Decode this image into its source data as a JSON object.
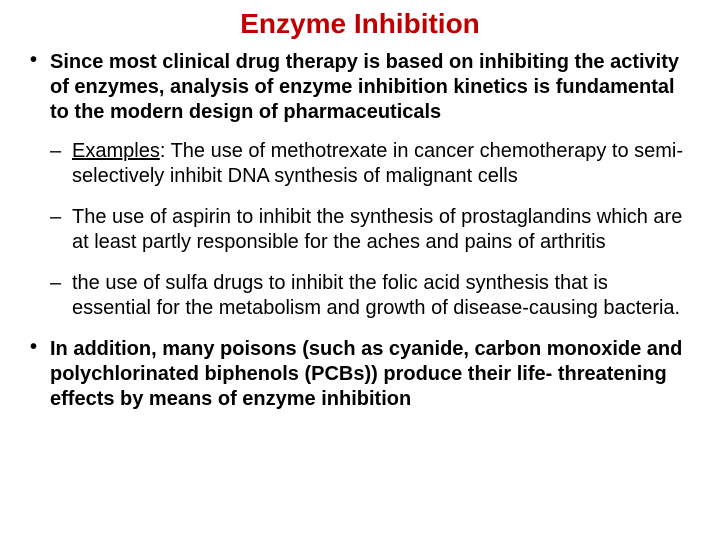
{
  "title": {
    "text": "Enzyme Inhibition",
    "color": "#c00000",
    "fontsize": 28
  },
  "body": {
    "color": "#000000",
    "fontsize": 20,
    "bullets": [
      {
        "text": "Since most clinical drug therapy is based on inhibiting the activity of enzymes, analysis of enzyme inhibition kinetics is fundamental to the modern design of pharmaceuticals",
        "sub": [
          {
            "label": "Examples",
            "after_label": ": The use of methotrexate in cancer chemotherapy to semi-selectively inhibit DNA synthesis of malignant cells"
          },
          {
            "text": "The use of aspirin to inhibit the synthesis of prostaglandins which are at least partly responsible for the aches and pains of arthritis"
          },
          {
            "text": "the use of sulfa drugs to inhibit the folic acid synthesis that is essential for the metabolism and growth of disease-causing bacteria."
          }
        ]
      },
      {
        "text": "In addition, many poisons (such as cyanide, carbon monoxide and polychlorinated biphenols (PCBs)) produce their life- threatening effects by means of enzyme inhibition"
      }
    ]
  }
}
